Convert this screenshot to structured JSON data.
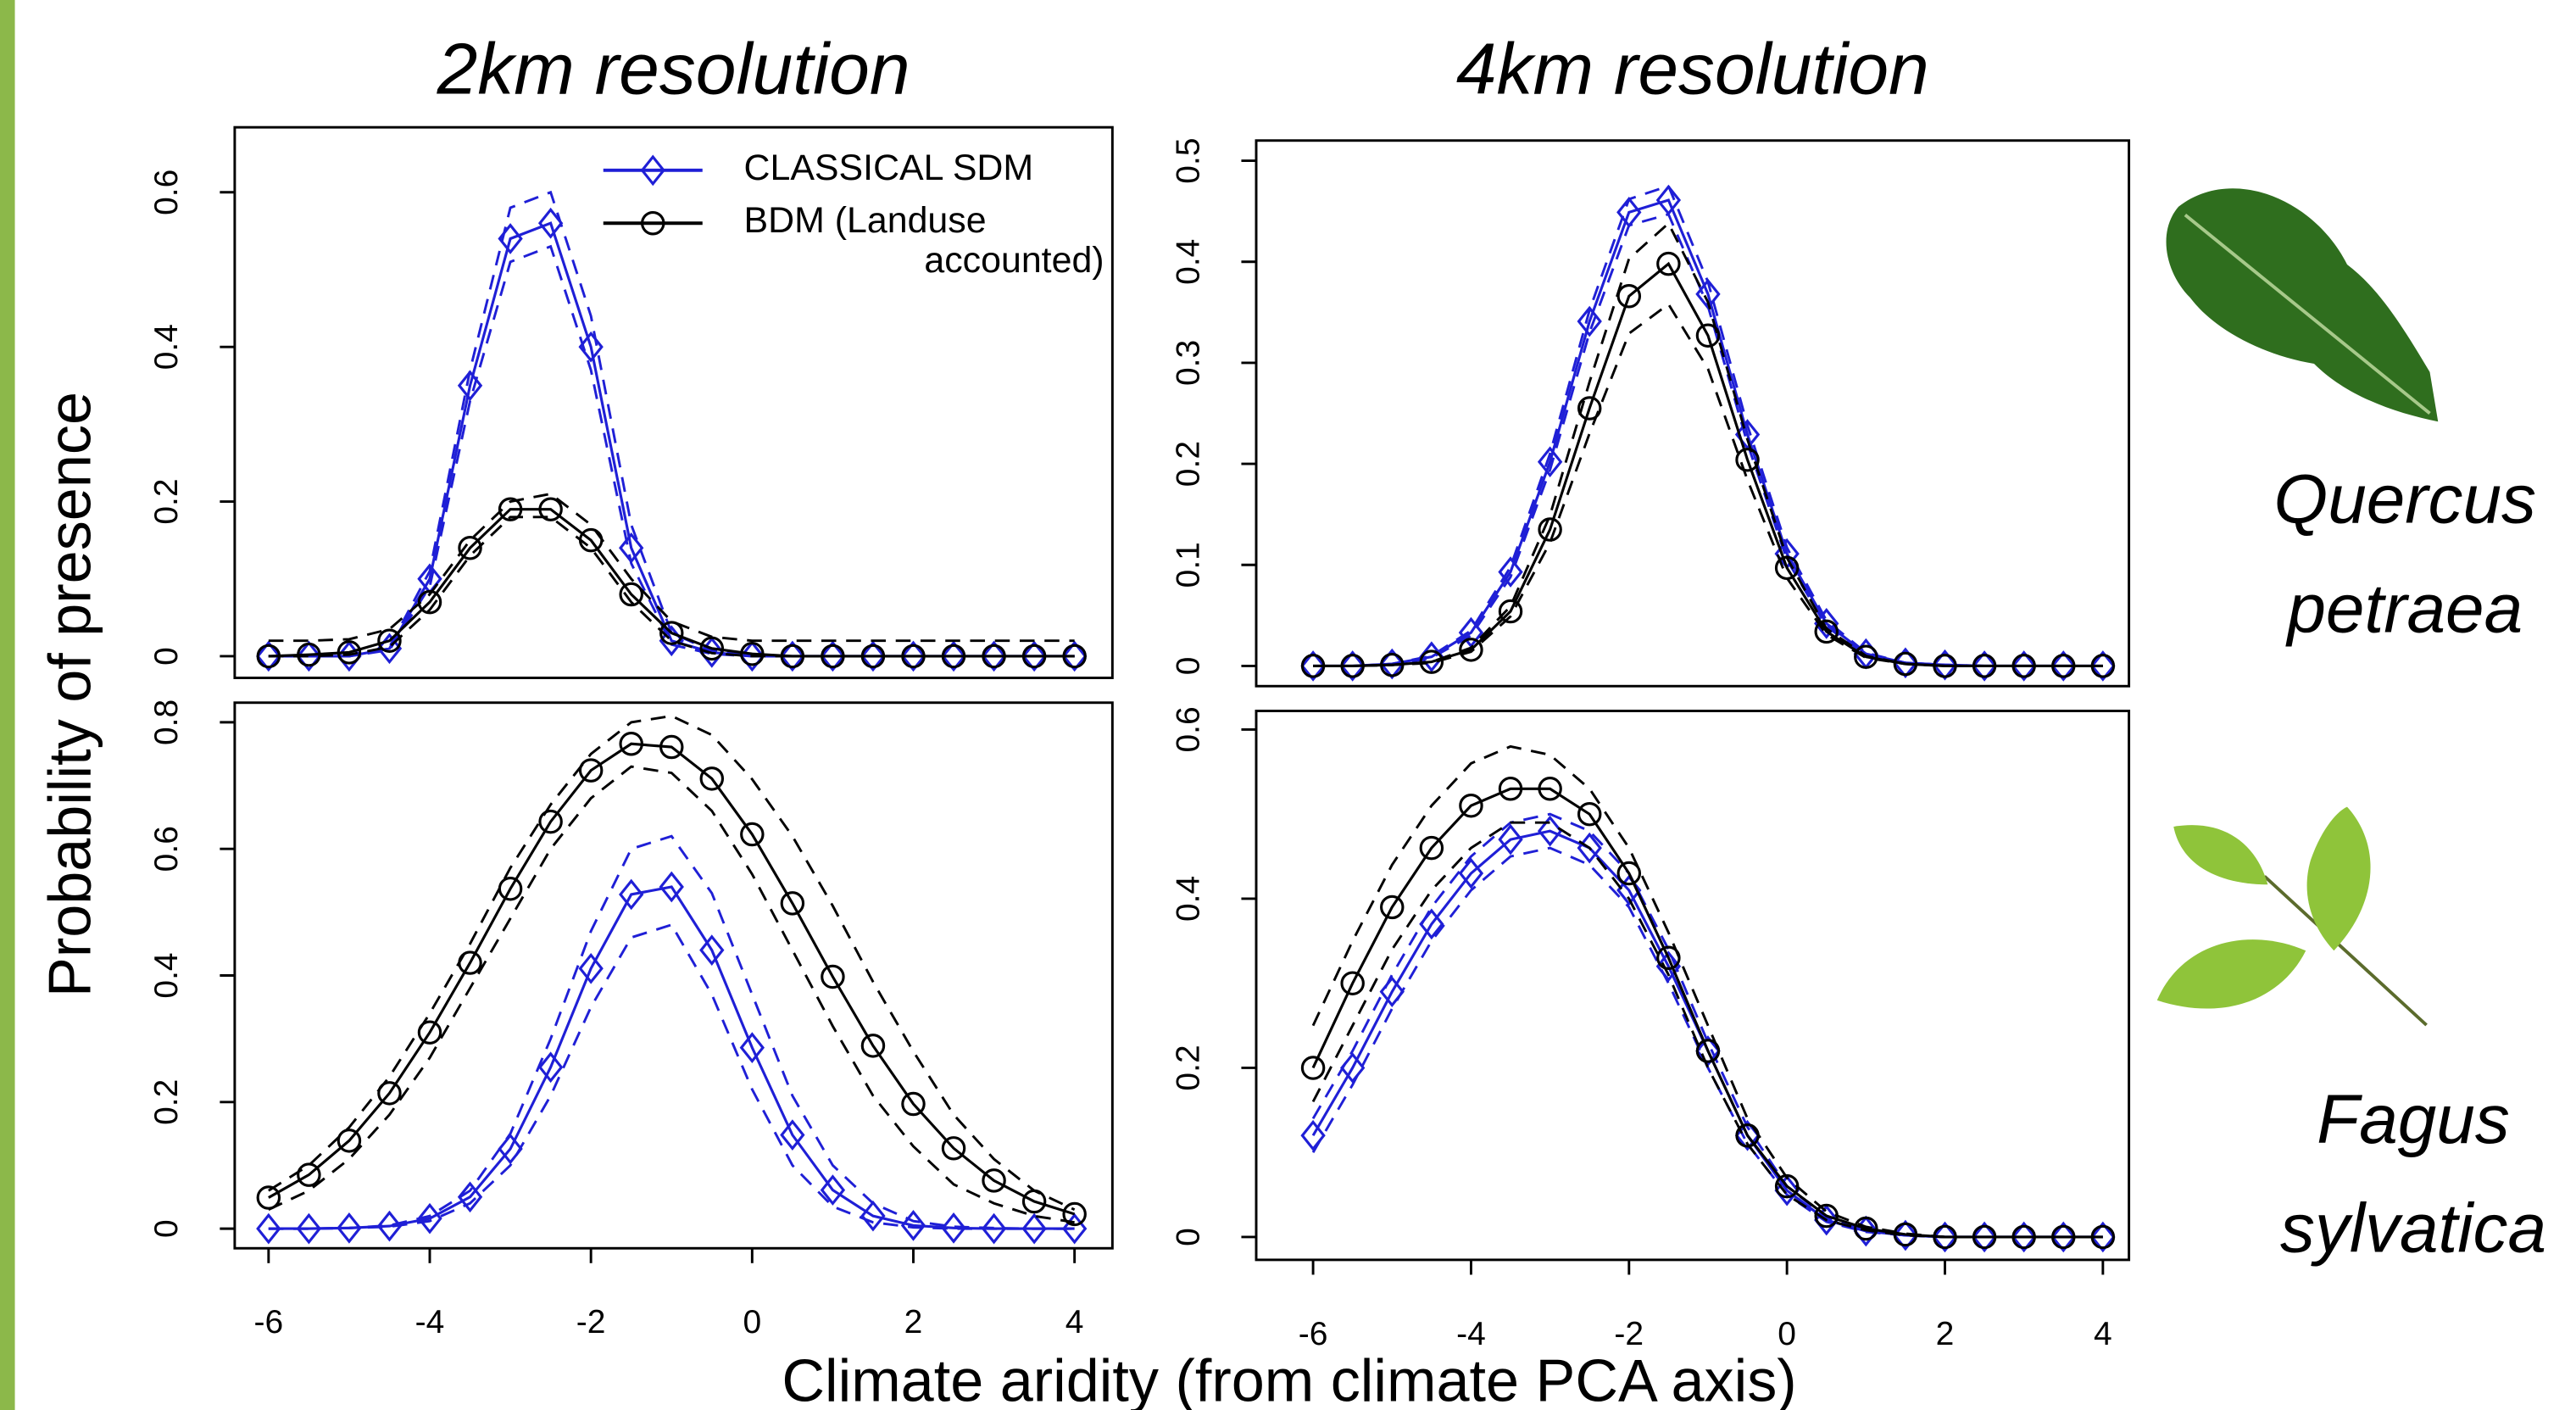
{
  "figure": {
    "y_label": "Probability of presence",
    "x_label": "Climate aridity (from climate PCA axis)",
    "species": [
      "Quercus petraea",
      "Fagus sylvatica"
    ]
  },
  "chart_data": [
    {
      "type": "line",
      "title": "2km resolution",
      "legend": true,
      "x": [
        -6,
        -5.5,
        -5,
        -4.5,
        -4,
        -3.5,
        -3,
        -2.5,
        -2,
        -1.5,
        -1,
        -0.5,
        0,
        0.5,
        1,
        1.5,
        2,
        2.5,
        3,
        3.5,
        4
      ],
      "xlim": [
        -6.42,
        4.47
      ],
      "ylim": [
        -0.028,
        0.684
      ],
      "yticks": [
        0,
        0.2,
        0.4,
        0.6
      ],
      "series": [
        {
          "name": "CLASSICAL SDM",
          "color": "#1f1fd6",
          "marker": "diamond",
          "values": [
            0,
            0,
            0,
            0.01,
            0.1,
            0.35,
            0.54,
            0.56,
            0.4,
            0.14,
            0.02,
            0.005,
            0,
            0,
            0,
            0,
            0,
            0,
            0,
            0,
            0
          ],
          "upper": [
            0,
            0,
            0,
            0.012,
            0.11,
            0.37,
            0.58,
            0.6,
            0.44,
            0.17,
            0.03,
            0.007,
            0,
            0,
            0,
            0,
            0,
            0,
            0,
            0,
            0
          ],
          "lower": [
            0,
            0,
            0,
            0.008,
            0.09,
            0.33,
            0.51,
            0.53,
            0.37,
            0.12,
            0.015,
            0.003,
            0,
            0,
            0,
            0,
            0,
            0,
            0,
            0,
            0
          ]
        },
        {
          "name": "BDM (Landuse accounted)",
          "color": "#000000",
          "marker": "circle",
          "values": [
            0,
            0.002,
            0.005,
            0.02,
            0.07,
            0.14,
            0.19,
            0.19,
            0.15,
            0.08,
            0.03,
            0.01,
            0.003,
            0,
            0,
            0,
            0,
            0,
            0,
            0,
            0
          ],
          "upper": [
            0.02,
            0.02,
            0.022,
            0.035,
            0.08,
            0.15,
            0.2,
            0.21,
            0.17,
            0.1,
            0.045,
            0.025,
            0.02,
            0.02,
            0.02,
            0.02,
            0.02,
            0.02,
            0.02,
            0.02,
            0.02
          ],
          "lower": [
            0,
            0,
            0.002,
            0.012,
            0.06,
            0.13,
            0.18,
            0.18,
            0.14,
            0.07,
            0.02,
            0.004,
            0,
            0,
            0,
            0,
            0,
            0,
            0,
            0,
            0
          ]
        }
      ]
    },
    {
      "type": "line",
      "title": "4km resolution",
      "x": [
        -6,
        -5.5,
        -5,
        -4.5,
        -4,
        -3.5,
        -3,
        -2.5,
        -2,
        -1.5,
        -1,
        -0.5,
        0,
        0.5,
        1,
        1.5,
        2,
        2.5,
        3,
        3.5,
        4
      ],
      "xlim": [
        -6.72,
        4.33
      ],
      "ylim": [
        -0.02,
        0.52
      ],
      "yticks": [
        0,
        0.1,
        0.2,
        0.3,
        0.4,
        0.5
      ],
      "series": [
        {
          "color": "#1f1fd6",
          "marker": "diamond",
          "values": [
            0,
            0,
            0.002,
            0.009,
            0.033,
            0.093,
            0.202,
            0.341,
            0.449,
            0.461,
            0.368,
            0.229,
            0.111,
            0.042,
            0.012,
            0.003,
            0.001,
            0,
            0,
            0,
            0
          ],
          "upper": [
            0,
            0,
            0.002,
            0.01,
            0.035,
            0.098,
            0.21,
            0.352,
            0.462,
            0.475,
            0.38,
            0.238,
            0.117,
            0.045,
            0.013,
            0.003,
            0.001,
            0,
            0,
            0,
            0
          ],
          "lower": [
            0,
            0,
            0.001,
            0.008,
            0.03,
            0.088,
            0.194,
            0.33,
            0.436,
            0.447,
            0.356,
            0.22,
            0.105,
            0.039,
            0.011,
            0.003,
            0.001,
            0,
            0,
            0,
            0
          ]
        },
        {
          "color": "#000000",
          "marker": "circle",
          "values": [
            0,
            0,
            0.001,
            0.004,
            0.016,
            0.054,
            0.135,
            0.255,
            0.366,
            0.398,
            0.327,
            0.204,
            0.097,
            0.034,
            0.009,
            0.002,
            0,
            0,
            0,
            0,
            0
          ],
          "upper": [
            0,
            0,
            0.001,
            0.004,
            0.018,
            0.059,
            0.149,
            0.281,
            0.403,
            0.438,
            0.36,
            0.224,
            0.107,
            0.037,
            0.01,
            0.002,
            0,
            0,
            0,
            0,
            0
          ],
          "lower": [
            0,
            0,
            0.001,
            0.003,
            0.014,
            0.049,
            0.122,
            0.23,
            0.329,
            0.358,
            0.294,
            0.184,
            0.087,
            0.031,
            0.008,
            0.002,
            0,
            0,
            0,
            0,
            0
          ]
        }
      ]
    },
    {
      "type": "line",
      "x": [
        -6,
        -5.5,
        -5,
        -4.5,
        -4,
        -3.5,
        -3,
        -2.5,
        -2,
        -1.5,
        -1,
        -0.5,
        0,
        0.5,
        1,
        1.5,
        2,
        2.5,
        3,
        3.5,
        4
      ],
      "xlim": [
        -6.42,
        4.47
      ],
      "xticks": [
        -6,
        -4,
        -2,
        0,
        2,
        4
      ],
      "ylim": [
        -0.031,
        0.831
      ],
      "yticks": [
        0,
        0.2,
        0.4,
        0.6,
        0.8
      ],
      "series": [
        {
          "color": "#1f1fd6",
          "marker": "diamond",
          "values": [
            0,
            0,
            0.001,
            0.004,
            0.016,
            0.05,
            0.126,
            0.255,
            0.411,
            0.528,
            0.54,
            0.44,
            0.286,
            0.148,
            0.061,
            0.02,
            0.005,
            0.001,
            0,
            0,
            0
          ],
          "upper": [
            0,
            0,
            0.001,
            0.005,
            0.02,
            0.06,
            0.15,
            0.3,
            0.47,
            0.6,
            0.62,
            0.53,
            0.37,
            0.21,
            0.1,
            0.04,
            0.012,
            0.003,
            0.001,
            0,
            0
          ],
          "lower": [
            0,
            0,
            0.001,
            0.003,
            0.012,
            0.04,
            0.1,
            0.21,
            0.35,
            0.46,
            0.48,
            0.37,
            0.22,
            0.1,
            0.035,
            0.01,
            0.002,
            0,
            0,
            0,
            0
          ]
        },
        {
          "color": "#000000",
          "marker": "circle",
          "values": [
            0.049,
            0.085,
            0.139,
            0.214,
            0.31,
            0.42,
            0.537,
            0.643,
            0.724,
            0.766,
            0.761,
            0.711,
            0.623,
            0.514,
            0.398,
            0.289,
            0.197,
            0.127,
            0.076,
            0.043,
            0.023
          ],
          "upper": [
            0.06,
            0.1,
            0.16,
            0.24,
            0.34,
            0.45,
            0.57,
            0.67,
            0.75,
            0.8,
            0.81,
            0.78,
            0.71,
            0.62,
            0.51,
            0.39,
            0.28,
            0.18,
            0.11,
            0.06,
            0.03
          ],
          "lower": [
            0.03,
            0.06,
            0.11,
            0.18,
            0.27,
            0.38,
            0.49,
            0.6,
            0.68,
            0.73,
            0.72,
            0.66,
            0.56,
            0.44,
            0.32,
            0.21,
            0.13,
            0.07,
            0.04,
            0.02,
            0.01
          ]
        }
      ]
    },
    {
      "type": "line",
      "x": [
        -6,
        -5.5,
        -5,
        -4.5,
        -4,
        -3.5,
        -3,
        -2.5,
        -2,
        -1.5,
        -1,
        -0.5,
        0,
        0.5,
        1,
        1.5,
        2,
        2.5,
        3,
        3.5,
        4
      ],
      "xlim": [
        -6.72,
        4.33
      ],
      "xticks": [
        -6,
        -4,
        -2,
        0,
        2,
        4
      ],
      "ylim": [
        -0.027,
        0.622
      ],
      "yticks": [
        0,
        0.2,
        0.4,
        0.6
      ],
      "series": [
        {
          "color": "#1f1fd6",
          "marker": "diamond",
          "values": [
            0.12,
            0.2,
            0.29,
            0.37,
            0.43,
            0.47,
            0.48,
            0.46,
            0.41,
            0.32,
            0.22,
            0.12,
            0.055,
            0.02,
            0.007,
            0.002,
            0,
            0,
            0,
            0,
            0
          ],
          "upper": [
            0.14,
            0.22,
            0.31,
            0.39,
            0.45,
            0.49,
            0.5,
            0.48,
            0.43,
            0.34,
            0.23,
            0.13,
            0.06,
            0.023,
            0.008,
            0.002,
            0,
            0,
            0,
            0,
            0
          ],
          "lower": [
            0.1,
            0.18,
            0.27,
            0.35,
            0.41,
            0.45,
            0.46,
            0.44,
            0.39,
            0.3,
            0.2,
            0.11,
            0.05,
            0.018,
            0.006,
            0.002,
            0,
            0,
            0,
            0,
            0
          ]
        },
        {
          "color": "#000000",
          "marker": "circle",
          "values": [
            0.2,
            0.3,
            0.39,
            0.46,
            0.51,
            0.53,
            0.53,
            0.5,
            0.43,
            0.33,
            0.22,
            0.12,
            0.06,
            0.025,
            0.01,
            0.003,
            0,
            0,
            0,
            0,
            0
          ],
          "upper": [
            0.25,
            0.35,
            0.44,
            0.51,
            0.56,
            0.58,
            0.57,
            0.53,
            0.46,
            0.36,
            0.25,
            0.14,
            0.07,
            0.03,
            0.012,
            0.004,
            0,
            0,
            0,
            0,
            0
          ],
          "lower": [
            0.16,
            0.25,
            0.34,
            0.41,
            0.46,
            0.49,
            0.49,
            0.46,
            0.4,
            0.31,
            0.2,
            0.11,
            0.05,
            0.02,
            0.008,
            0.002,
            0,
            0,
            0,
            0,
            0
          ]
        }
      ]
    }
  ]
}
